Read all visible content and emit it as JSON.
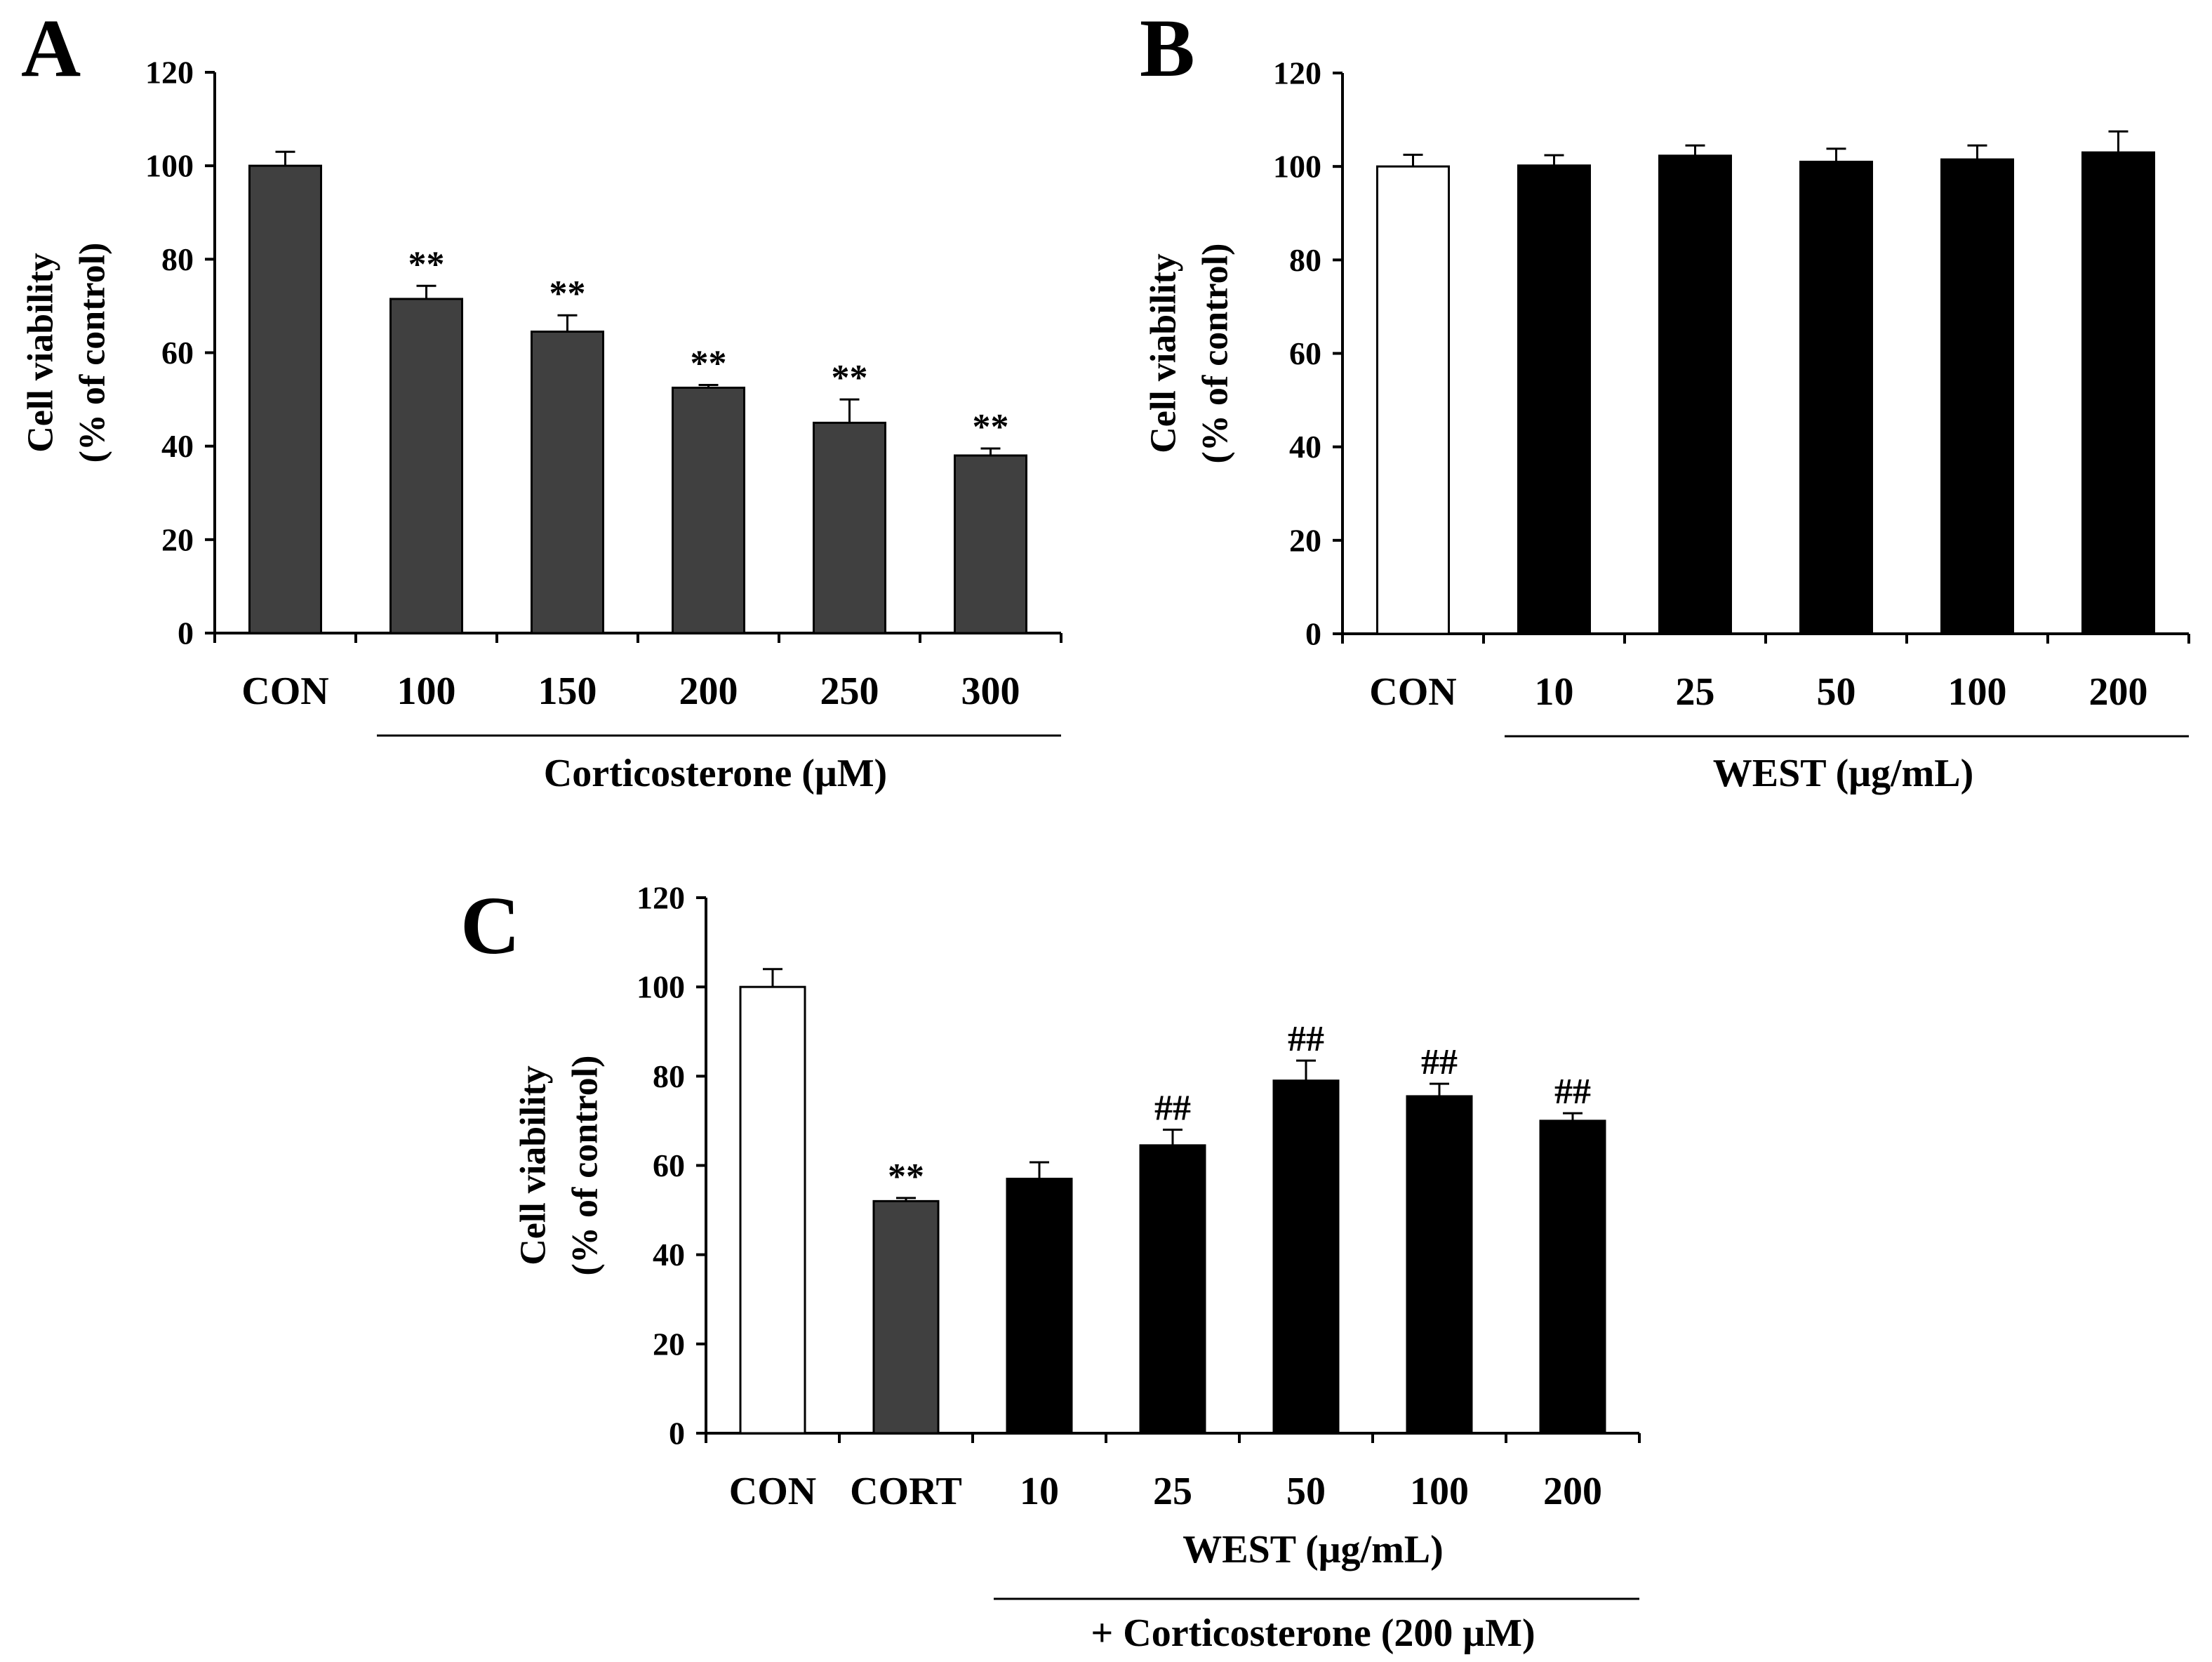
{
  "chart_data": [
    {
      "panel": "A",
      "type": "bar",
      "title": "",
      "ylabel_line1": "Cell viability",
      "ylabel_line2": "(% of control)",
      "ylim": [
        0,
        120
      ],
      "yticks": [
        0,
        20,
        40,
        60,
        80,
        100,
        120
      ],
      "categories": [
        "CON",
        "100",
        "150",
        "200",
        "250",
        "300"
      ],
      "values": [
        100,
        71.5,
        64.5,
        52.5,
        45,
        38
      ],
      "errors": [
        3,
        2.8,
        3.5,
        0.6,
        5,
        1.5
      ],
      "significance": [
        "",
        "**",
        "**",
        "**",
        "**",
        "**"
      ],
      "bar_colors": [
        "#404040",
        "#404040",
        "#404040",
        "#404040",
        "#404040",
        "#404040"
      ],
      "groups": [
        {
          "label": "Corticosterone (μM)",
          "from": 1,
          "to": 5
        }
      ]
    },
    {
      "panel": "B",
      "type": "bar",
      "title": "",
      "ylabel_line1": "Cell viability",
      "ylabel_line2": "(% of control)",
      "ylim": [
        0,
        120
      ],
      "yticks": [
        0,
        20,
        40,
        60,
        80,
        100,
        120
      ],
      "categories": [
        "CON",
        "10",
        "25",
        "50",
        "100",
        "200"
      ],
      "values": [
        100,
        100.2,
        102.3,
        101,
        101.5,
        103
      ],
      "errors": [
        2.5,
        2.2,
        2.2,
        2.8,
        3,
        4.5
      ],
      "significance": [
        "",
        "",
        "",
        "",
        "",
        ""
      ],
      "bar_colors": [
        "#ffffff",
        "#000000",
        "#000000",
        "#000000",
        "#000000",
        "#000000"
      ],
      "groups": [
        {
          "label": "WEST (μg/mL)",
          "from": 1,
          "to": 5
        }
      ]
    },
    {
      "panel": "C",
      "type": "bar",
      "title": "",
      "ylabel_line1": "Cell viability",
      "ylabel_line2": "(% of control)",
      "ylim": [
        0,
        120
      ],
      "yticks": [
        0,
        20,
        40,
        60,
        80,
        100,
        120
      ],
      "categories": [
        "CON",
        "CORT",
        "10",
        "25",
        "50",
        "100",
        "200"
      ],
      "values": [
        100,
        52,
        57,
        64.5,
        79,
        75.5,
        70
      ],
      "errors": [
        4,
        0.7,
        3.7,
        3.5,
        4.5,
        2.8,
        1.7
      ],
      "significance": [
        "",
        "**",
        "",
        "##",
        "##",
        "##",
        "##"
      ],
      "bar_colors": [
        "#ffffff",
        "#404040",
        "#000000",
        "#000000",
        "#000000",
        "#000000",
        "#000000"
      ],
      "groups": [
        {
          "label": "WEST (μg/mL)",
          "from": 2,
          "to": 6,
          "line": false
        },
        {
          "label": "+ Corticosterone (200 μM)",
          "from": 2,
          "to": 6,
          "line": true
        }
      ]
    }
  ]
}
